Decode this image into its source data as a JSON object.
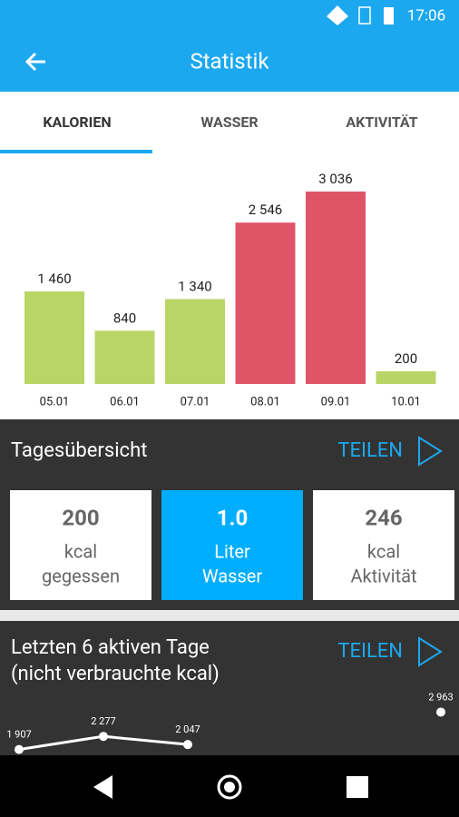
{
  "status_bar": {
    "time": "17:06"
  },
  "app_bar": {
    "title": "Statistik"
  },
  "tabs": [
    "KALORIEN",
    "WASSER",
    "AKTIVITÄT"
  ],
  "chart_data": [
    {
      "type": "bar",
      "categories": [
        "05.01",
        "06.01",
        "07.01",
        "08.01",
        "09.01",
        "10.01"
      ],
      "values": [
        1460,
        840,
        1340,
        2546,
        3036,
        200
      ],
      "value_labels": [
        "1 460",
        "840",
        "1 340",
        "2 546",
        "3 036",
        "200"
      ],
      "colors": [
        "#b8d566",
        "#b8d566",
        "#b8d566",
        "#e05467",
        "#e05467",
        "#b8d566"
      ]
    },
    {
      "type": "line",
      "values": [
        1907,
        2277,
        2047,
        null,
        null,
        2963
      ],
      "value_labels": [
        "1 907",
        "2 277",
        "2 047",
        null,
        null,
        "2 963"
      ],
      "color": "#ffffff"
    }
  ],
  "day_summary": {
    "title": "Tagesübersicht",
    "share": "TEILEN",
    "cards": [
      {
        "value": "200",
        "lines": [
          "kcal",
          "gegessen"
        ]
      },
      {
        "value": "1.0",
        "lines": [
          "Liter",
          "Wasser"
        ]
      },
      {
        "value": "246",
        "lines": [
          "kcal",
          "Aktivität"
        ]
      }
    ]
  },
  "last_days": {
    "title_lines": [
      "Letzten 6 aktiven Tage",
      "(nicht verbrauchte kcal)"
    ],
    "share": "TEILEN"
  }
}
